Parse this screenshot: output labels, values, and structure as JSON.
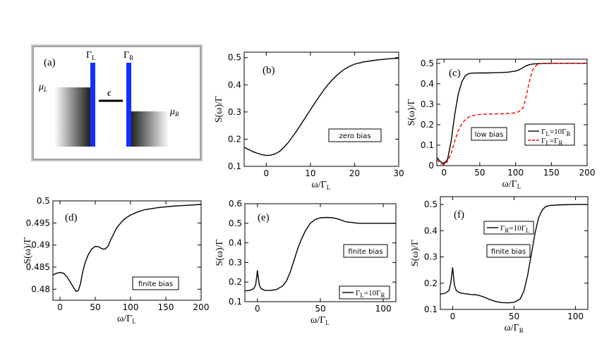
{
  "schematic": {
    "label": "(a)",
    "gamma_left": "Γ",
    "gamma_left_sub": "L",
    "gamma_right": "Γ",
    "gamma_right_sub": "R",
    "mu_left": "μ",
    "mu_left_sub": "L",
    "mu_right": "μ",
    "mu_right_sub": "R",
    "level": "ϵ",
    "barrier_color": "#1030ff"
  },
  "colors": {
    "series_black": "#000000",
    "series_red": "#ff0000"
  },
  "chart_data": [
    {
      "id": "b",
      "type": "line",
      "label": "(b)",
      "ylabel": "S(ω)/Γ",
      "xlabel": "ω/Γ",
      "xlabel_sub": "L",
      "xlim": [
        -5,
        30
      ],
      "ylim": [
        0.1,
        0.52
      ],
      "xticks": [
        0,
        10,
        20,
        30
      ],
      "yticks": [
        0.1,
        0.2,
        0.3,
        0.4,
        0.5
      ],
      "xticklabels": [
        "0",
        "10",
        "20",
        "30"
      ],
      "yticklabels": [
        "0.1",
        "0.2",
        "0.3",
        "0.4",
        "0.5"
      ],
      "annotation": "zero bias",
      "series": [
        {
          "x": [
            -5,
            -4,
            -3,
            -2,
            -1,
            0,
            1,
            2,
            3,
            4,
            5,
            6,
            7,
            8,
            9,
            10,
            11,
            12,
            13,
            14,
            15,
            16,
            17,
            18,
            19,
            20,
            22,
            24,
            26,
            28,
            30
          ],
          "y": [
            0.17,
            0.162,
            0.154,
            0.148,
            0.143,
            0.14,
            0.141,
            0.146,
            0.155,
            0.17,
            0.188,
            0.21,
            0.233,
            0.258,
            0.283,
            0.308,
            0.333,
            0.357,
            0.38,
            0.401,
            0.419,
            0.435,
            0.449,
            0.46,
            0.469,
            0.476,
            0.484,
            0.489,
            0.493,
            0.496,
            0.498
          ]
        }
      ]
    },
    {
      "id": "c",
      "type": "line",
      "label": "(c)",
      "ylabel": "S(ω)/Γ",
      "xlabel": "ω/Γ",
      "xlabel_sub": "L",
      "xlim": [
        -10,
        200
      ],
      "ylim": [
        0,
        0.52
      ],
      "xticks": [
        0,
        50,
        100,
        150,
        200
      ],
      "yticks": [
        0,
        0.1,
        0.2,
        0.3,
        0.4,
        0.5
      ],
      "xticklabels": [
        "0",
        "50",
        "100",
        "150",
        "200"
      ],
      "yticklabels": [
        "0",
        "0.1",
        "0.2",
        "0.3",
        "0.4",
        "0.5"
      ],
      "annotation": "low bias",
      "series": [
        {
          "name": "Γ=10Γ",
          "name_parts": [
            "Γ",
            "L",
            "=10Γ",
            "R"
          ],
          "color": "#000000",
          "dash": "solid",
          "x": [
            -10,
            -5,
            0,
            5,
            10,
            15,
            20,
            25,
            30,
            35,
            40,
            50,
            60,
            70,
            80,
            90,
            100,
            105,
            110,
            115,
            120,
            125,
            130,
            140,
            160,
            200
          ],
          "y": [
            0.04,
            0.02,
            0.01,
            0.03,
            0.12,
            0.25,
            0.35,
            0.41,
            0.44,
            0.45,
            0.452,
            0.453,
            0.453,
            0.454,
            0.455,
            0.457,
            0.462,
            0.468,
            0.478,
            0.488,
            0.494,
            0.497,
            0.498,
            0.499,
            0.5,
            0.5
          ]
        },
        {
          "name": "Γ=Γ",
          "name_parts": [
            "Γ",
            "L",
            "=Γ",
            "R"
          ],
          "color": "#ff0000",
          "dash": "dashed",
          "x": [
            -10,
            -5,
            0,
            5,
            10,
            15,
            20,
            25,
            30,
            35,
            40,
            50,
            60,
            80,
            100,
            105,
            110,
            112,
            115,
            118,
            120,
            123,
            126,
            130,
            135,
            140,
            160,
            200
          ],
          "y": [
            0.03,
            0.01,
            0.005,
            0.02,
            0.06,
            0.12,
            0.17,
            0.205,
            0.225,
            0.238,
            0.245,
            0.25,
            0.252,
            0.253,
            0.258,
            0.265,
            0.28,
            0.3,
            0.34,
            0.39,
            0.42,
            0.46,
            0.48,
            0.492,
            0.498,
            0.5,
            0.5,
            0.5
          ]
        }
      ]
    },
    {
      "id": "d",
      "type": "line",
      "label": "(d)",
      "ylabel": "S(ω)/Γ",
      "xlabel": "ω/Γ",
      "xlabel_sub": "L",
      "xlim": [
        -10,
        200
      ],
      "ylim": [
        0.4775,
        0.5
      ],
      "xticks": [
        0,
        50,
        100,
        150,
        200
      ],
      "yticks": [
        0.48,
        0.485,
        0.49,
        0.495,
        0.5
      ],
      "xticklabels": [
        "0",
        "50",
        "100",
        "150",
        "200"
      ],
      "yticklabels": [
        "0.48",
        "0.485",
        "0.49",
        "0.495",
        "0.5"
      ],
      "annotation": "finite bias",
      "series": [
        {
          "x": [
            -10,
            -5,
            0,
            5,
            10,
            15,
            20,
            23,
            26,
            29,
            32,
            36,
            40,
            45,
            50,
            55,
            60,
            64,
            68,
            72,
            76,
            80,
            85,
            90,
            95,
            100,
            110,
            120,
            140,
            160,
            180,
            200
          ],
          "y": [
            0.4832,
            0.4836,
            0.4838,
            0.4836,
            0.4828,
            0.4815,
            0.4802,
            0.4795,
            0.4797,
            0.4812,
            0.4838,
            0.4862,
            0.4878,
            0.4891,
            0.4897,
            0.4896,
            0.4891,
            0.4891,
            0.4897,
            0.4912,
            0.4925,
            0.4938,
            0.4948,
            0.4957,
            0.4963,
            0.4968,
            0.4975,
            0.498,
            0.4985,
            0.4988,
            0.499,
            0.4992
          ]
        }
      ]
    },
    {
      "id": "e",
      "type": "line",
      "label": "(e)",
      "ylabel": "S(ω)/Γ",
      "xlabel": "ω/Γ",
      "xlabel_sub": "L",
      "xlim": [
        -10,
        110
      ],
      "ylim": [
        0.1,
        0.6
      ],
      "xticks": [
        0,
        50,
        100
      ],
      "yticks": [
        0.1,
        0.2,
        0.3,
        0.4,
        0.5,
        0.6
      ],
      "xticklabels": [
        "0",
        "50",
        "100"
      ],
      "yticklabels": [
        "0.1",
        "0.2",
        "0.3",
        "0.4",
        "0.5",
        "0.6"
      ],
      "annotation": "finite bias",
      "legend_parts": [
        "Γ",
        "L",
        "=10Γ",
        "R"
      ],
      "series": [
        {
          "x": [
            -10,
            -6,
            -3,
            -1.5,
            -0.5,
            0,
            0.5,
            1.5,
            3,
            6,
            10,
            15,
            20,
            23,
            26,
            29,
            32,
            35,
            38,
            42,
            46,
            50,
            55,
            60,
            65,
            70,
            80,
            90,
            100,
            110
          ],
          "y": [
            0.155,
            0.158,
            0.166,
            0.185,
            0.23,
            0.26,
            0.23,
            0.185,
            0.166,
            0.158,
            0.157,
            0.162,
            0.18,
            0.205,
            0.25,
            0.31,
            0.37,
            0.42,
            0.46,
            0.5,
            0.52,
            0.528,
            0.53,
            0.528,
            0.52,
            0.508,
            0.5,
            0.5,
            0.5,
            0.5
          ]
        }
      ]
    },
    {
      "id": "f",
      "type": "line",
      "label": "(f)",
      "ylabel": "S(ω)/Γ",
      "xlabel": "ω/Γ",
      "xlabel_sub": "R",
      "xlim": [
        -10,
        110
      ],
      "ylim": [
        0.1,
        0.53
      ],
      "xticks": [
        0,
        50,
        100
      ],
      "yticks": [
        0.1,
        0.2,
        0.3,
        0.4,
        0.5
      ],
      "xticklabels": [
        "0",
        "50",
        "100"
      ],
      "yticklabels": [
        "0.1",
        "0.2",
        "0.3",
        "0.4",
        "0.5"
      ],
      "annotation": "finite bias",
      "legend_parts": [
        "Γ",
        "R",
        "=10Γ",
        "L"
      ],
      "series": [
        {
          "x": [
            -10,
            -6,
            -3,
            -1.5,
            -0.5,
            0,
            0.5,
            1.5,
            3,
            6,
            10,
            15,
            20,
            25,
            30,
            35,
            40,
            45,
            50,
            55,
            58,
            61,
            64,
            67,
            70,
            73,
            76,
            80,
            90,
            100,
            110
          ],
          "y": [
            0.158,
            0.162,
            0.172,
            0.2,
            0.24,
            0.26,
            0.235,
            0.192,
            0.172,
            0.163,
            0.16,
            0.157,
            0.155,
            0.148,
            0.138,
            0.13,
            0.126,
            0.125,
            0.127,
            0.14,
            0.17,
            0.23,
            0.31,
            0.39,
            0.45,
            0.48,
            0.493,
            0.497,
            0.499,
            0.5,
            0.5
          ]
        }
      ]
    }
  ]
}
